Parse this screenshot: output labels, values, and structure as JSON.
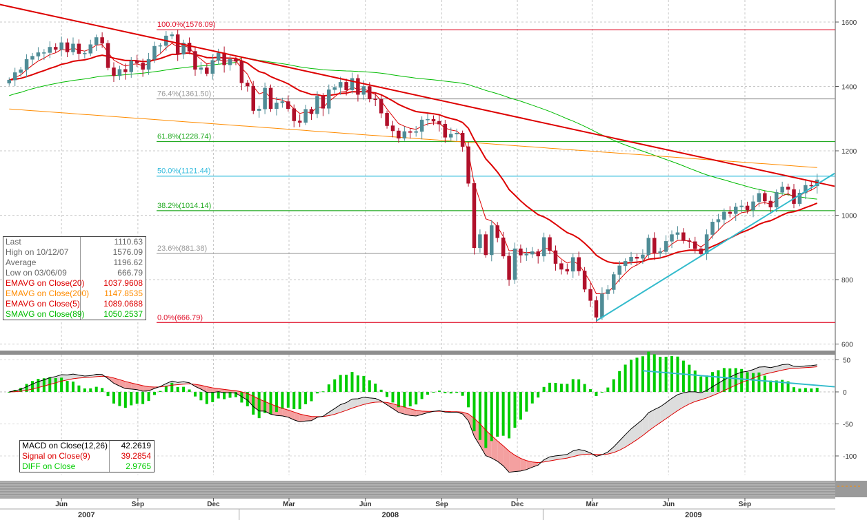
{
  "chart_data": [
    {
      "type": "candlestick",
      "panel": "price",
      "frequency": "weekly",
      "ylim": [
        580,
        1660
      ],
      "yticks": [
        600,
        800,
        1000,
        1200,
        1400,
        1600
      ],
      "grid": true,
      "x_tick_labels": [
        {
          "label": "Jun",
          "date": "2007-06-01"
        },
        {
          "label": "Sep",
          "date": "2007-09-01"
        },
        {
          "label": "Dec",
          "date": "2007-12-01"
        },
        {
          "label": "Mar",
          "date": "2008-03-01"
        },
        {
          "label": "Jun",
          "date": "2008-06-01"
        },
        {
          "label": "Sep",
          "date": "2008-09-01"
        },
        {
          "label": "Dec",
          "date": "2008-12-01"
        },
        {
          "label": "Mar",
          "date": "2009-03-01"
        },
        {
          "label": "Jun",
          "date": "2009-06-01"
        },
        {
          "label": "Sep",
          "date": "2009-09-01"
        }
      ],
      "x_year_labels": [
        {
          "label": "2007",
          "date": "2007-07-01"
        },
        {
          "label": "2008",
          "date": "2008-07-01"
        },
        {
          "label": "2009",
          "date": "2009-07-01"
        }
      ],
      "close_series": [
        [
          "2007-03-30",
          1420
        ],
        [
          "2007-04-06",
          1443
        ],
        [
          "2007-04-13",
          1452
        ],
        [
          "2007-04-20",
          1484
        ],
        [
          "2007-04-27",
          1494
        ],
        [
          "2007-05-04",
          1505
        ],
        [
          "2007-05-11",
          1505
        ],
        [
          "2007-05-18",
          1522
        ],
        [
          "2007-05-25",
          1515
        ],
        [
          "2007-06-01",
          1536
        ],
        [
          "2007-06-08",
          1507
        ],
        [
          "2007-06-15",
          1532
        ],
        [
          "2007-06-22",
          1502
        ],
        [
          "2007-06-29",
          1503
        ],
        [
          "2007-07-06",
          1530
        ],
        [
          "2007-07-13",
          1552
        ],
        [
          "2007-07-20",
          1534
        ],
        [
          "2007-07-27",
          1458
        ],
        [
          "2007-08-03",
          1433
        ],
        [
          "2007-08-10",
          1453
        ],
        [
          "2007-08-17",
          1445
        ],
        [
          "2007-08-24",
          1479
        ],
        [
          "2007-08-31",
          1473
        ],
        [
          "2007-09-07",
          1453
        ],
        [
          "2007-09-14",
          1484
        ],
        [
          "2007-09-21",
          1525
        ],
        [
          "2007-09-28",
          1527
        ],
        [
          "2007-10-05",
          1557
        ],
        [
          "2007-10-12",
          1561
        ],
        [
          "2007-10-19",
          1500
        ],
        [
          "2007-10-26",
          1535
        ],
        [
          "2007-11-02",
          1509
        ],
        [
          "2007-11-09",
          1453
        ],
        [
          "2007-11-16",
          1458
        ],
        [
          "2007-11-23",
          1440
        ],
        [
          "2007-11-30",
          1481
        ],
        [
          "2007-12-07",
          1504
        ],
        [
          "2007-12-14",
          1467
        ],
        [
          "2007-12-21",
          1484
        ],
        [
          "2007-12-28",
          1478
        ],
        [
          "2008-01-04",
          1411
        ],
        [
          "2008-01-11",
          1401
        ],
        [
          "2008-01-18",
          1325
        ],
        [
          "2008-01-25",
          1330
        ],
        [
          "2008-02-01",
          1395
        ],
        [
          "2008-02-08",
          1331
        ],
        [
          "2008-02-15",
          1349
        ],
        [
          "2008-02-22",
          1353
        ],
        [
          "2008-02-29",
          1331
        ],
        [
          "2008-03-07",
          1293
        ],
        [
          "2008-03-14",
          1288
        ],
        [
          "2008-03-21",
          1329
        ],
        [
          "2008-03-28",
          1315
        ],
        [
          "2008-04-04",
          1370
        ],
        [
          "2008-04-11",
          1332
        ],
        [
          "2008-04-18",
          1390
        ],
        [
          "2008-04-25",
          1397
        ],
        [
          "2008-05-02",
          1413
        ],
        [
          "2008-05-09",
          1389
        ],
        [
          "2008-05-16",
          1425
        ],
        [
          "2008-05-23",
          1375
        ],
        [
          "2008-05-30",
          1400
        ],
        [
          "2008-06-06",
          1361
        ],
        [
          "2008-06-13",
          1360
        ],
        [
          "2008-06-20",
          1317
        ],
        [
          "2008-06-27",
          1278
        ],
        [
          "2008-07-04",
          1262
        ],
        [
          "2008-07-11",
          1239
        ],
        [
          "2008-07-18",
          1260
        ],
        [
          "2008-07-25",
          1257
        ],
        [
          "2008-08-01",
          1260
        ],
        [
          "2008-08-08",
          1296
        ],
        [
          "2008-08-15",
          1298
        ],
        [
          "2008-08-22",
          1292
        ],
        [
          "2008-08-29",
          1283
        ],
        [
          "2008-09-05",
          1242
        ],
        [
          "2008-09-12",
          1252
        ],
        [
          "2008-09-19",
          1255
        ],
        [
          "2008-09-26",
          1213
        ],
        [
          "2008-10-03",
          1099
        ],
        [
          "2008-10-10",
          899
        ],
        [
          "2008-10-17",
          940
        ],
        [
          "2008-10-24",
          877
        ],
        [
          "2008-10-31",
          968
        ],
        [
          "2008-11-07",
          930
        ],
        [
          "2008-11-14",
          873
        ],
        [
          "2008-11-21",
          800
        ],
        [
          "2008-11-28",
          896
        ],
        [
          "2008-12-05",
          876
        ],
        [
          "2008-12-12",
          879
        ],
        [
          "2008-12-19",
          887
        ],
        [
          "2008-12-26",
          873
        ],
        [
          "2009-01-02",
          931
        ],
        [
          "2009-01-09",
          890
        ],
        [
          "2009-01-16",
          850
        ],
        [
          "2009-01-23",
          832
        ],
        [
          "2009-01-30",
          826
        ],
        [
          "2009-02-06",
          869
        ],
        [
          "2009-02-13",
          827
        ],
        [
          "2009-02-20",
          770
        ],
        [
          "2009-02-27",
          735
        ],
        [
          "2009-03-06",
          683
        ],
        [
          "2009-03-13",
          756
        ],
        [
          "2009-03-20",
          769
        ],
        [
          "2009-03-27",
          816
        ],
        [
          "2009-04-03",
          843
        ],
        [
          "2009-04-10",
          857
        ],
        [
          "2009-04-17",
          870
        ],
        [
          "2009-04-24",
          866
        ],
        [
          "2009-05-01",
          877
        ],
        [
          "2009-05-08",
          929
        ],
        [
          "2009-05-15",
          883
        ],
        [
          "2009-05-22",
          887
        ],
        [
          "2009-05-29",
          919
        ],
        [
          "2009-06-05",
          940
        ],
        [
          "2009-06-12",
          946
        ],
        [
          "2009-06-19",
          921
        ],
        [
          "2009-06-26",
          918
        ],
        [
          "2009-07-03",
          896
        ],
        [
          "2009-07-10",
          880
        ],
        [
          "2009-07-17",
          940
        ],
        [
          "2009-07-24",
          979
        ],
        [
          "2009-07-31",
          987
        ],
        [
          "2009-08-07",
          1010
        ],
        [
          "2009-08-14",
          1005
        ],
        [
          "2009-08-21",
          1026
        ],
        [
          "2009-08-28",
          1029
        ],
        [
          "2009-09-04",
          1016
        ],
        [
          "2009-09-11",
          1042
        ],
        [
          "2009-09-18",
          1068
        ],
        [
          "2009-09-25",
          1044
        ],
        [
          "2009-10-02",
          1025
        ],
        [
          "2009-10-09",
          1071
        ],
        [
          "2009-10-16",
          1088
        ],
        [
          "2009-10-23",
          1080
        ],
        [
          "2009-10-30",
          1036
        ],
        [
          "2009-11-06",
          1069
        ],
        [
          "2009-11-13",
          1093
        ],
        [
          "2009-11-20",
          1091
        ],
        [
          "2009-11-27",
          1110
        ]
      ],
      "moving_averages": [
        {
          "label": "EMAVG on Close(20)",
          "value": "1037.9608",
          "color": "#dd0000"
        },
        {
          "label": "EMAVG on Close(200)",
          "value": "1147.8535",
          "color": "#ff8c00"
        },
        {
          "label": "EMAVG on Close(5)",
          "value": "1089.0688",
          "color": "#dd0000"
        },
        {
          "label": "SMAVG on Close(89)",
          "value": "1050.2537",
          "color": "#00bb00"
        }
      ],
      "fibonacci_levels": [
        {
          "label": "100.0%(1576.09)",
          "price": 1576.09,
          "color": "#e0102a"
        },
        {
          "label": "76.4%(1361.50)",
          "price": 1361.5,
          "color": "#999999"
        },
        {
          "label": "61.8%(1228.74)",
          "price": 1228.74,
          "color": "#22aa22"
        },
        {
          "label": "50.0%(1121.44)",
          "price": 1121.44,
          "color": "#33bbdd"
        },
        {
          "label": "38.2%(1014.14)",
          "price": 1014.14,
          "color": "#22aa22"
        },
        {
          "label": "23.6%(881.38)",
          "price": 881.38,
          "color": "#999999"
        },
        {
          "label": "0.0%(666.79)",
          "price": 666.79,
          "color": "#e0102a"
        }
      ],
      "trend_lines": [
        {
          "label": "downtrend",
          "color": "#dd0000",
          "from": [
            "2007-03-09",
            1660
          ],
          "to": [
            "2009-12-18",
            1090
          ]
        },
        {
          "label": "uptrend",
          "color": "#33bbcc",
          "from": [
            "2009-03-06",
            672
          ],
          "to": [
            "2009-12-18",
            1130
          ]
        }
      ],
      "stats": {
        "rows": [
          {
            "label": "Last",
            "value": "1110.63"
          },
          {
            "label": "High on  10/12/07",
            "value": "1576.09"
          },
          {
            "label": "Average",
            "value": "1196.62"
          },
          {
            "label": "Low on  03/06/09",
            "value": "666.79"
          }
        ]
      }
    },
    {
      "type": "macd",
      "panel": "macd",
      "ylim": [
        -135,
        60
      ],
      "yticks": [
        50,
        0,
        -50,
        -100
      ],
      "lines": [
        {
          "label": "MACD on Close(12,26)",
          "value": "42.2619",
          "color": "#000000"
        },
        {
          "label": "Signal on Close(9)",
          "value": "39.2854",
          "color": "#dd0000"
        },
        {
          "label": "DIFF on Close",
          "value": "2.9765",
          "color": "#00cc00"
        }
      ],
      "divergence_line": {
        "color": "#33bbcc",
        "from": [
          "2009-05-01",
          33
        ],
        "to": [
          "2009-12-18",
          8
        ]
      }
    }
  ]
}
